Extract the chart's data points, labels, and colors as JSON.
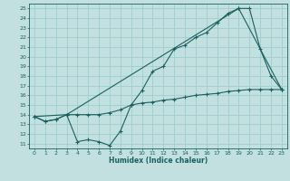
{
  "xlabel": "Humidex (Indice chaleur)",
  "bg_color": "#c2e0e0",
  "line_color": "#1a6060",
  "grid_color": "#9ecece",
  "xlim": [
    -0.5,
    23.5
  ],
  "ylim": [
    10.5,
    25.5
  ],
  "xticks": [
    0,
    1,
    2,
    3,
    4,
    5,
    6,
    7,
    8,
    9,
    10,
    11,
    12,
    13,
    14,
    15,
    16,
    17,
    18,
    19,
    20,
    21,
    22,
    23
  ],
  "yticks": [
    11,
    12,
    13,
    14,
    15,
    16,
    17,
    18,
    19,
    20,
    21,
    22,
    23,
    24,
    25
  ],
  "line1_x": [
    0,
    1,
    2,
    3,
    4,
    5,
    6,
    7,
    8,
    9,
    10,
    11,
    12,
    13,
    14,
    15,
    16,
    17,
    18,
    19,
    20,
    21,
    22,
    23
  ],
  "line1_y": [
    13.8,
    13.3,
    13.5,
    14.0,
    11.2,
    11.4,
    11.2,
    10.8,
    12.3,
    15.0,
    16.5,
    18.5,
    19.0,
    20.8,
    21.2,
    22.0,
    22.5,
    23.5,
    24.5,
    25.0,
    25.0,
    20.8,
    18.0,
    16.6
  ],
  "line2_x": [
    0,
    1,
    2,
    3,
    4,
    5,
    6,
    7,
    8,
    9,
    10,
    11,
    12,
    13,
    14,
    15,
    16,
    17,
    18,
    19,
    20,
    21,
    22,
    23
  ],
  "line2_y": [
    13.8,
    13.3,
    13.5,
    14.0,
    14.0,
    14.0,
    14.0,
    14.2,
    14.5,
    15.0,
    15.2,
    15.3,
    15.5,
    15.6,
    15.8,
    16.0,
    16.1,
    16.2,
    16.4,
    16.5,
    16.6,
    16.6,
    16.6,
    16.6
  ],
  "line3_x": [
    0,
    3,
    19,
    23
  ],
  "line3_y": [
    13.8,
    14.0,
    25.0,
    16.6
  ]
}
